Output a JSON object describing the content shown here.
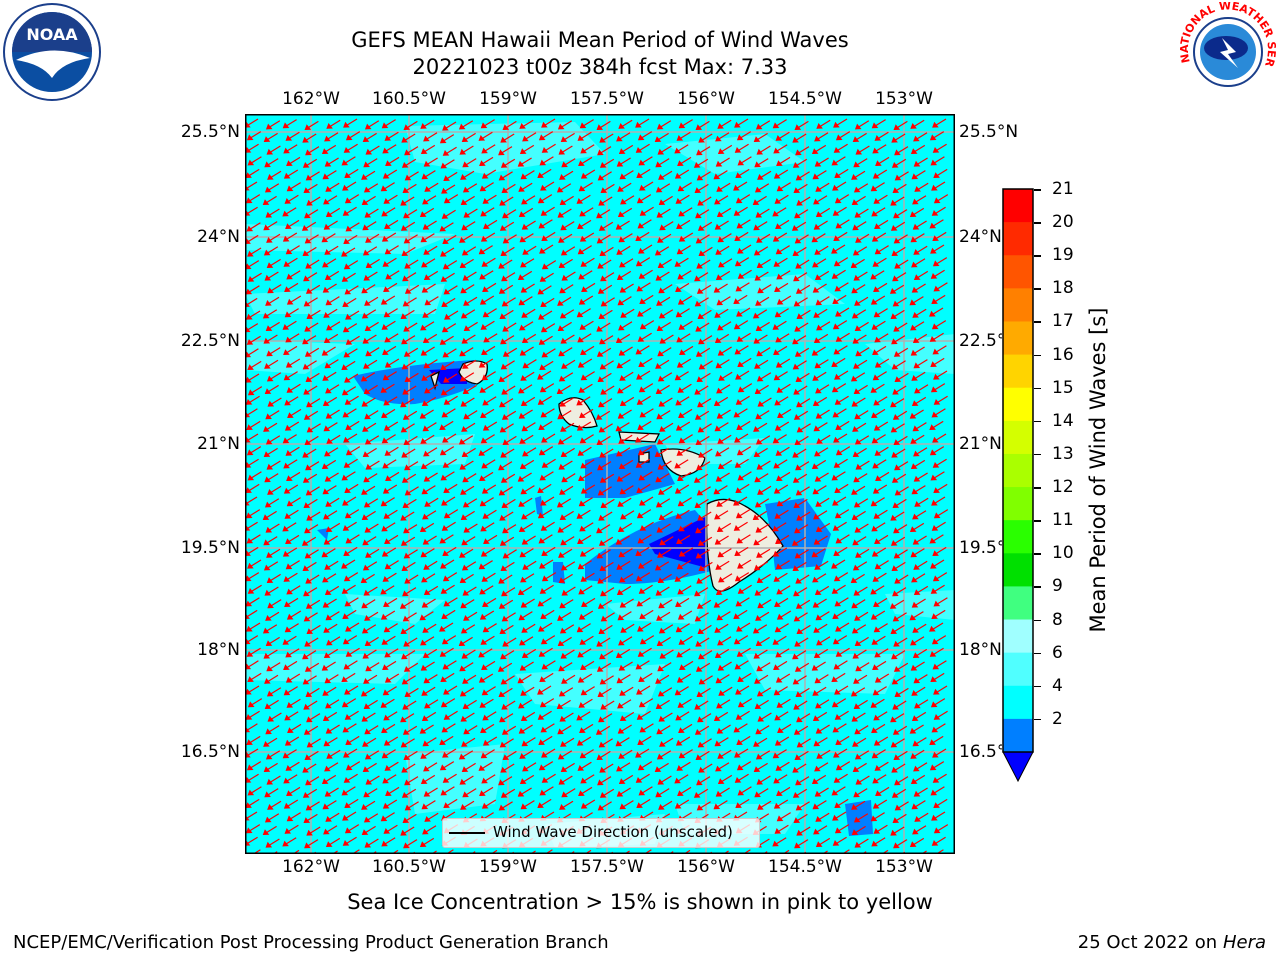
{
  "title": {
    "line1": "GEFS MEAN Hawaii Mean Period of Wind Waves",
    "line2": "20221023 t00z 384h fcst   Max: 7.33"
  },
  "logos": {
    "left_text": "NOAA",
    "right_text": "NATIONAL WEATHER SERVICE"
  },
  "map": {
    "lon_ticks": [
      "162°W",
      "160.5°W",
      "159°W",
      "157.5°W",
      "156°W",
      "154.5°W",
      "153°W"
    ],
    "lat_ticks": [
      "25.5°N",
      "24°N",
      "22.5°N",
      "21°N",
      "19.5°N",
      "18°N",
      "16.5°N"
    ],
    "ocean_color": "#00ffff",
    "vector_color": "#ff0000",
    "legend_label": "Wind Wave Direction (unscaled)"
  },
  "colorbar": {
    "label": "Mean Period of Wind Waves [s]",
    "ticks": [
      "21",
      "20",
      "19",
      "18",
      "17",
      "16",
      "15",
      "14",
      "13",
      "12",
      "11",
      "10",
      "9",
      "8",
      "6",
      "4",
      "2"
    ],
    "colors": [
      "#ff0000",
      "#ff2a00",
      "#ff5500",
      "#ff8000",
      "#ffaa00",
      "#ffd400",
      "#ffff00",
      "#d4ff00",
      "#aaff00",
      "#80ff00",
      "#2aff00",
      "#00e000",
      "#40ff80",
      "#a0ffff",
      "#50ffff",
      "#00ffff",
      "#007fff"
    ],
    "under_color": "#0000ff"
  },
  "notes": {
    "sea_ice": "Sea Ice Concentration > 15% is shown in pink to yellow"
  },
  "footer": {
    "left": "NCEP/EMC/Verification Post Processing Product Generation Branch",
    "right_prefix": "25 Oct 2022 on ",
    "right_host": "Hera"
  }
}
